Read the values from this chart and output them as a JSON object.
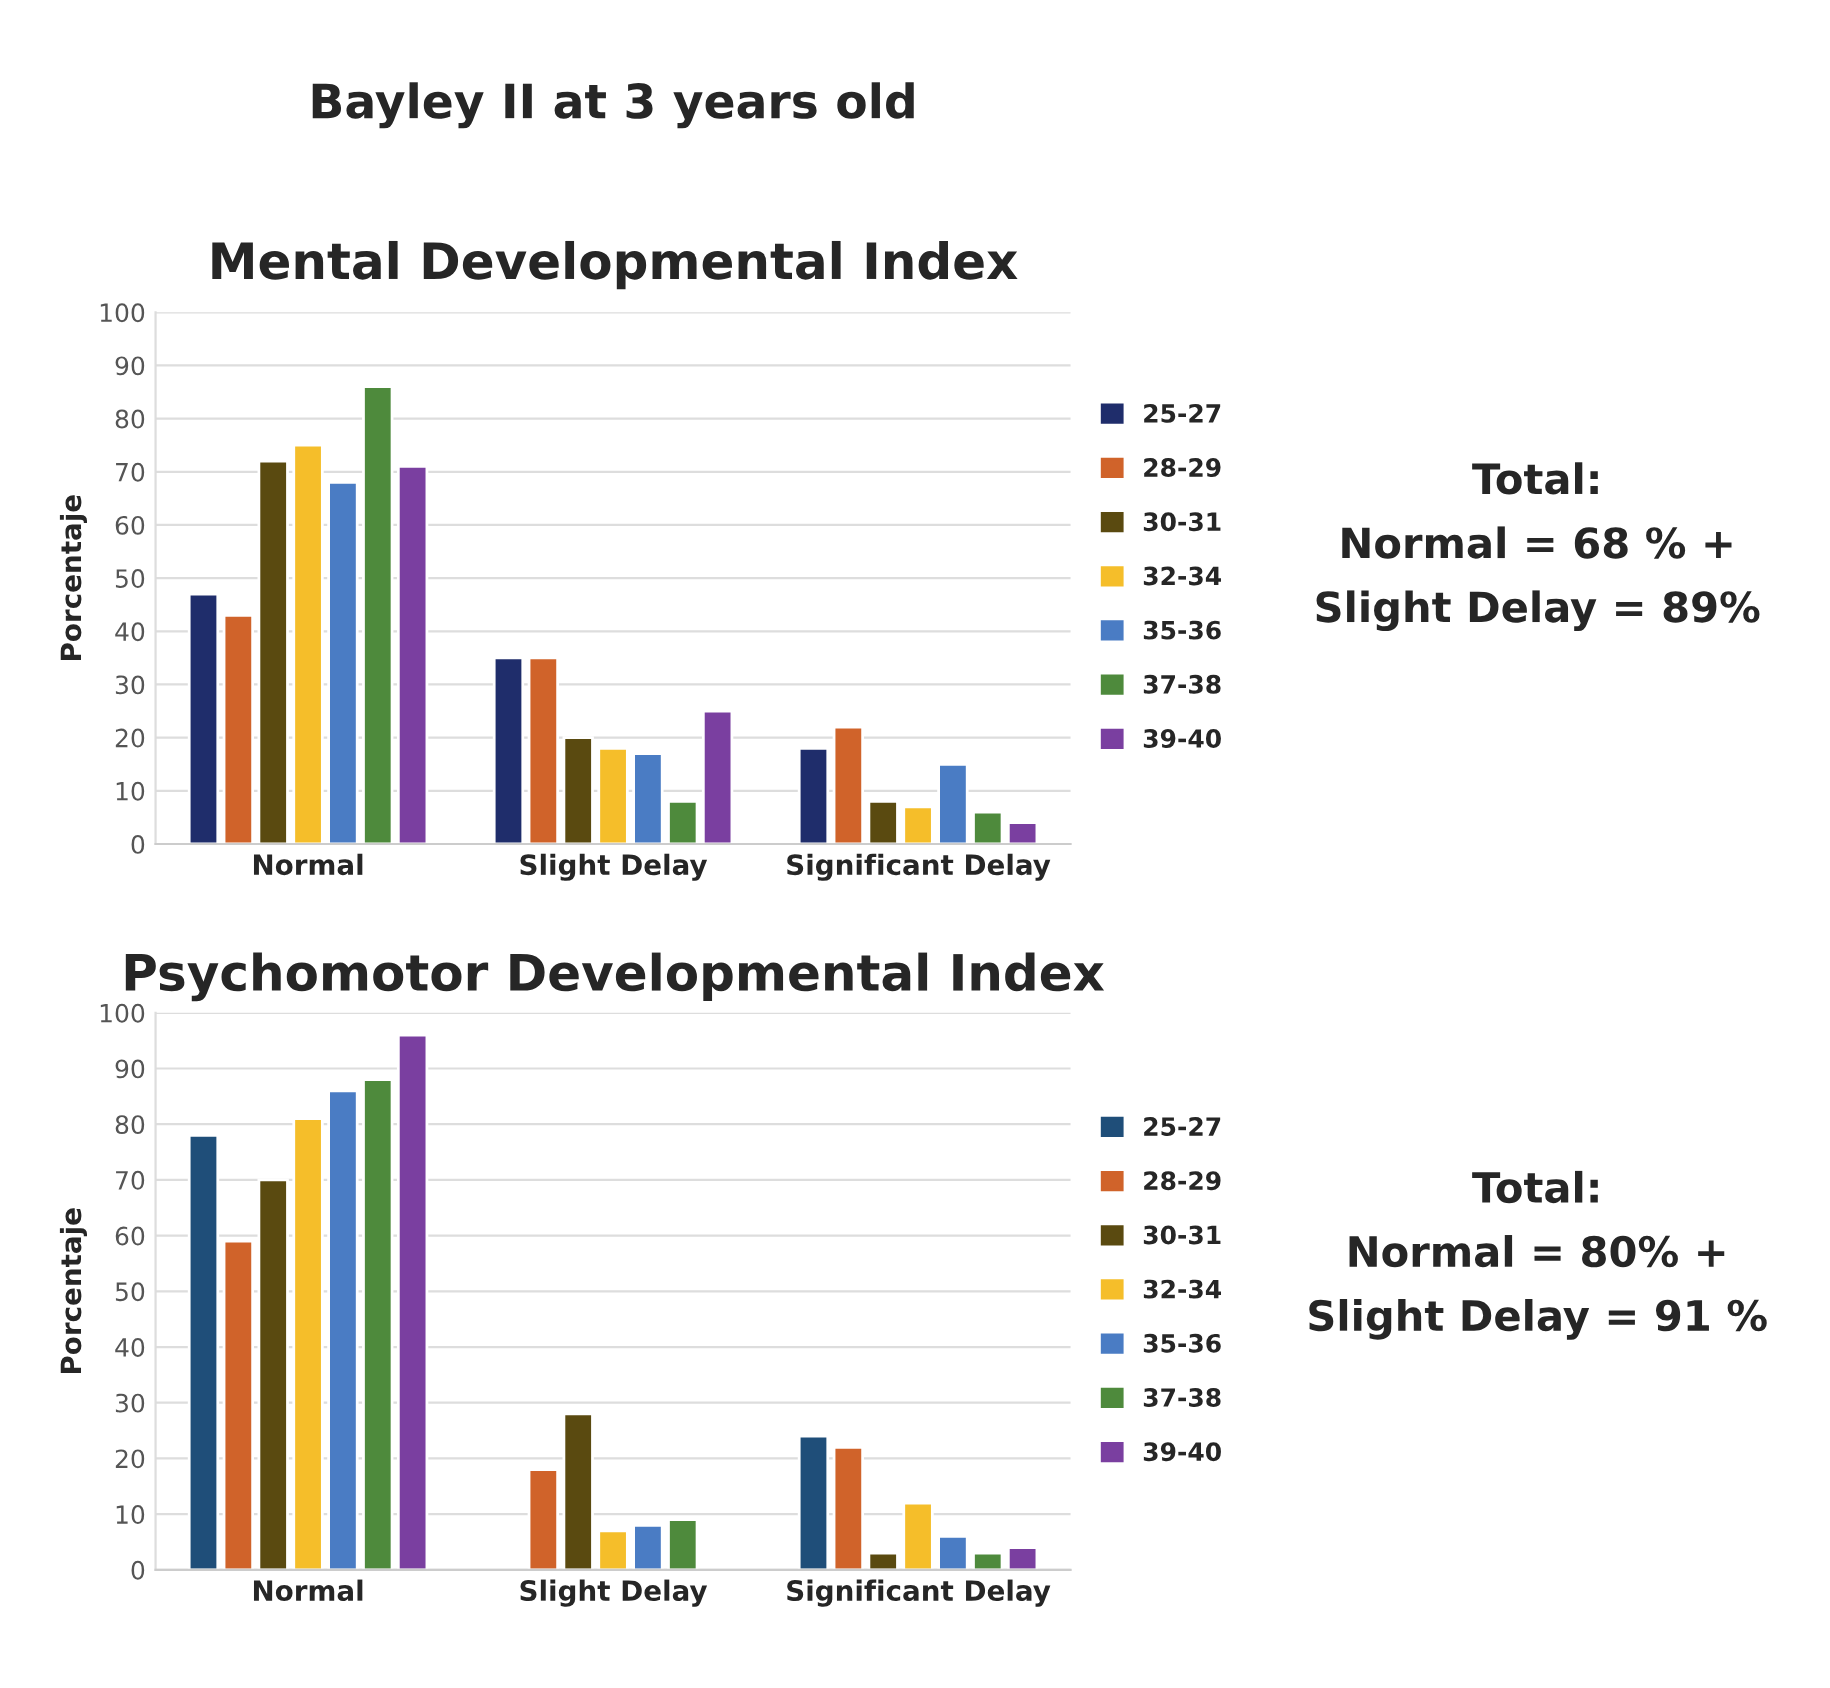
{
  "chart_data": [
    {
      "type": "bar",
      "title": "Bayley II at 3 years old",
      "subtitle": "Mental Developmental Index",
      "ylabel": "Porcentaje",
      "categories": [
        "Normal",
        "Slight Delay",
        "Significant Delay"
      ],
      "series": [
        {
          "name": "25-27",
          "color": "#1f2d6b",
          "values": [
            47,
            35,
            18
          ]
        },
        {
          "name": "28-29",
          "color": "#d0632a",
          "values": [
            43,
            35,
            22
          ]
        },
        {
          "name": "30-31",
          "color": "#5a4a10",
          "values": [
            72,
            20,
            8
          ]
        },
        {
          "name": "32-34",
          "color": "#f5be2a",
          "values": [
            75,
            18,
            7
          ]
        },
        {
          "name": "35-36",
          "color": "#4a7cc4",
          "values": [
            68,
            17,
            15
          ]
        },
        {
          "name": "37-38",
          "color": "#4e8a3c",
          "values": [
            86,
            8,
            6
          ]
        },
        {
          "name": "39-40",
          "color": "#7a3fa0",
          "values": [
            71,
            25,
            4
          ]
        }
      ],
      "ylim": [
        0,
        100
      ],
      "yticks": [
        0,
        10,
        20,
        30,
        40,
        50,
        60,
        70,
        80,
        90,
        100
      ],
      "grid": "y",
      "legend": "right",
      "annotations": [
        "Total:",
        "Normal = 68 % +",
        "Slight Delay = 89%"
      ]
    },
    {
      "type": "bar",
      "title": "Psychomotor Developmental Index",
      "ylabel": "Porcentaje",
      "categories": [
        "Normal",
        "Slight Delay",
        "Significant Delay"
      ],
      "series": [
        {
          "name": "25-27",
          "color": "#1f4e79",
          "values": [
            78,
            null,
            24
          ]
        },
        {
          "name": "28-29",
          "color": "#d0632a",
          "values": [
            59,
            18,
            22
          ]
        },
        {
          "name": "30-31",
          "color": "#5a4a10",
          "values": [
            70,
            28,
            3
          ]
        },
        {
          "name": "32-34",
          "color": "#f5be2a",
          "values": [
            81,
            7,
            12
          ]
        },
        {
          "name": "35-36",
          "color": "#4a7cc4",
          "values": [
            86,
            8,
            6
          ]
        },
        {
          "name": "37-38",
          "color": "#4e8a3c",
          "values": [
            88,
            9,
            3
          ]
        },
        {
          "name": "39-40",
          "color": "#7a3fa0",
          "values": [
            96,
            null,
            4
          ]
        }
      ],
      "ylim": [
        0,
        100
      ],
      "yticks": [
        0,
        10,
        20,
        30,
        40,
        50,
        60,
        70,
        80,
        90,
        100
      ],
      "grid": "y",
      "legend": "right",
      "annotations": [
        "Total:",
        "Normal = 80% +",
        "Slight Delay = 91 %"
      ]
    }
  ]
}
